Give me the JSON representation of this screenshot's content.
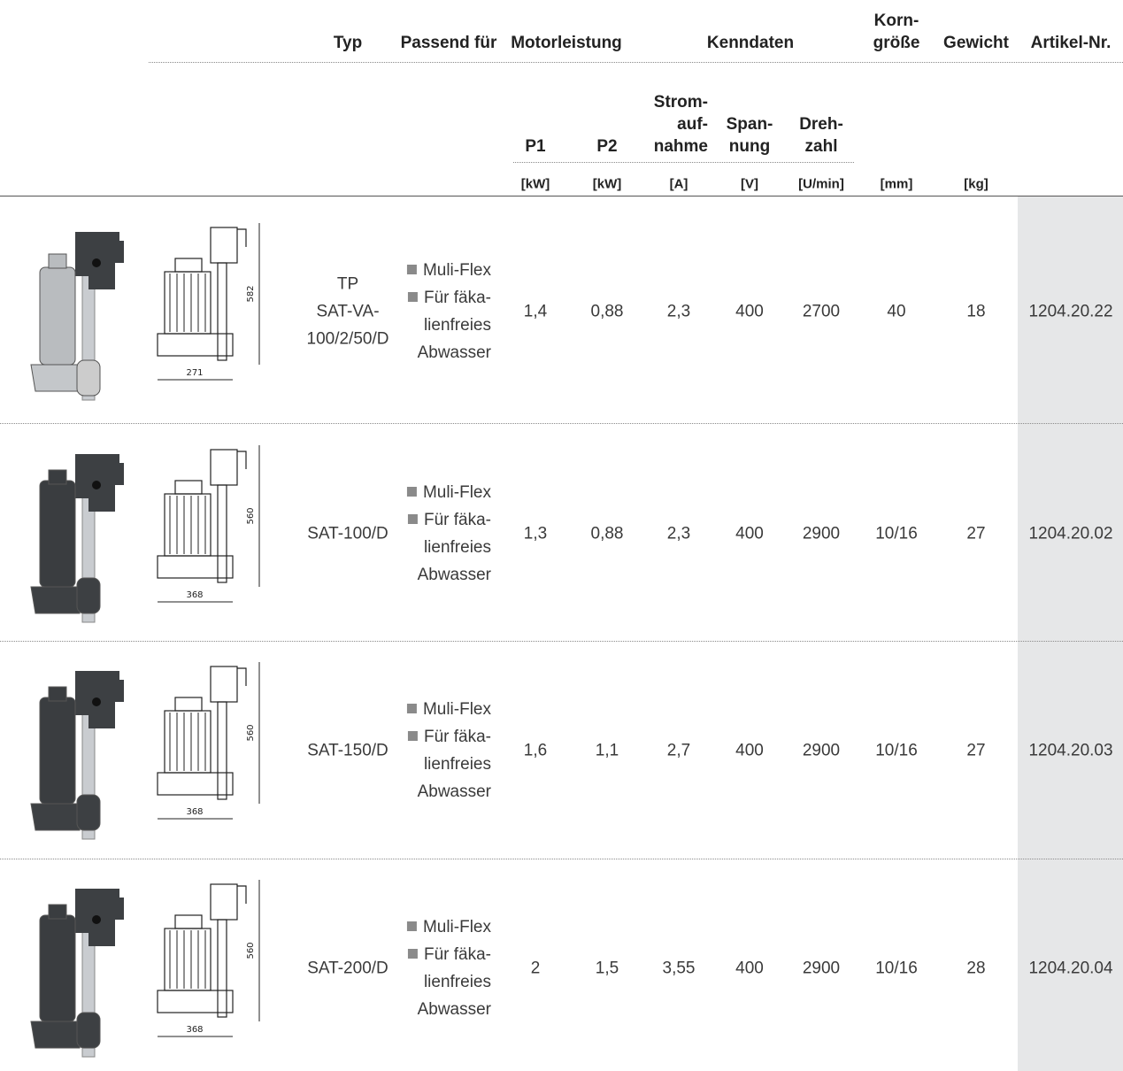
{
  "header": {
    "typ": "Typ",
    "passend": "Passend für",
    "motorleistung": "Motorleistung",
    "kenndaten": "Kenndaten",
    "korngroesse": [
      "Korn-",
      "größe"
    ],
    "gewicht": "Gewicht",
    "artikel": "Artikel-Nr.",
    "p1": "P1",
    "p2": "P2",
    "strom": [
      "Strom-",
      "auf-",
      "nahme"
    ],
    "spannung": [
      "Span-",
      "nung"
    ],
    "drehzahl": [
      "Dreh-",
      "zahl"
    ],
    "units": [
      "[kW]",
      "[kW]",
      "[A]",
      "[V]",
      "[U/min]",
      "[mm]",
      "[kg]"
    ]
  },
  "rows": [
    {
      "typ": [
        "TP",
        "SAT-VA-",
        "100/2/50/D"
      ],
      "passend": [
        [
          "Muli-Flex"
        ],
        [
          "Für fäka-",
          "lienfreies",
          "Abwasser"
        ]
      ],
      "p1": "1,4",
      "p2": "0,88",
      "strom": "2,3",
      "spannung": "400",
      "drehzahl": "2700",
      "korn": "40",
      "gewicht": "18",
      "artikel": "1204.20.22",
      "dim_height": "582",
      "dim_width": "271"
    },
    {
      "typ": [
        "SAT-100/D"
      ],
      "passend": [
        [
          "Muli-Flex"
        ],
        [
          "Für fäka-",
          "lienfreies",
          "Abwasser"
        ]
      ],
      "p1": "1,3",
      "p2": "0,88",
      "strom": "2,3",
      "spannung": "400",
      "drehzahl": "2900",
      "korn": "10/16",
      "gewicht": "27",
      "artikel": "1204.20.02",
      "dim_height": "560",
      "dim_width": "368"
    },
    {
      "typ": [
        "SAT-150/D"
      ],
      "passend": [
        [
          "Muli-Flex"
        ],
        [
          "Für fäka-",
          "lienfreies",
          "Abwasser"
        ]
      ],
      "p1": "1,6",
      "p2": "1,1",
      "strom": "2,7",
      "spannung": "400",
      "drehzahl": "2900",
      "korn": "10/16",
      "gewicht": "27",
      "artikel": "1204.20.03",
      "dim_height": "560",
      "dim_width": "368"
    },
    {
      "typ": [
        "SAT-200/D"
      ],
      "passend": [
        [
          "Muli-Flex"
        ],
        [
          "Für fäka-",
          "lienfreies",
          "Abwasser"
        ]
      ],
      "p1": "2",
      "p2": "1,5",
      "strom": "3,55",
      "spannung": "400",
      "drehzahl": "2900",
      "korn": "10/16",
      "gewicht": "28",
      "artikel": "1204.20.04",
      "dim_height": "560",
      "dim_width": "368"
    }
  ]
}
